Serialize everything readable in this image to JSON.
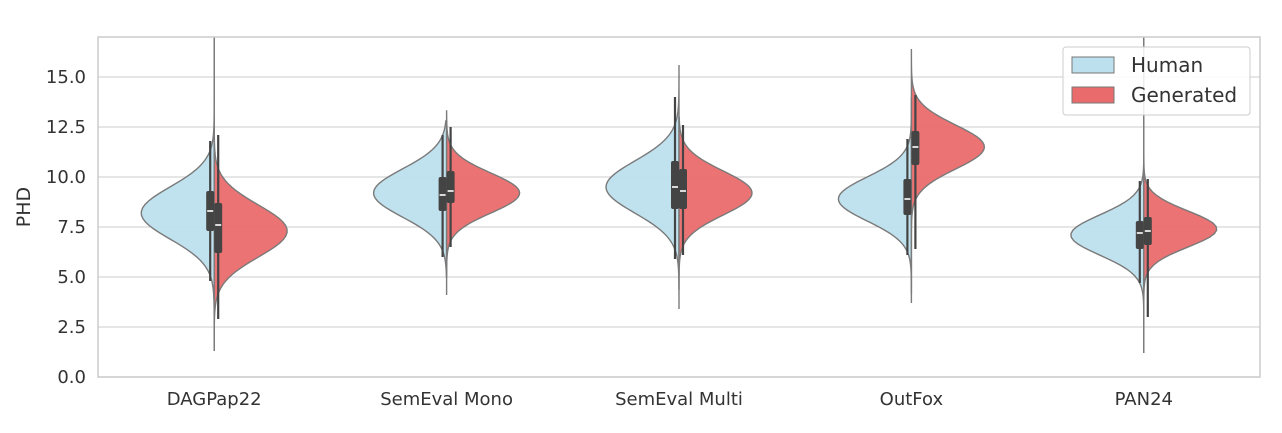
{
  "chart_data": {
    "type": "violin",
    "title": "",
    "xlabel": "",
    "ylabel": "PHD",
    "ylim": [
      0,
      17
    ],
    "yticks": [
      "0.0",
      "2.5",
      "5.0",
      "7.5",
      "10.0",
      "12.5",
      "15.0"
    ],
    "categories": [
      "DAGPap22",
      "SemEval Mono",
      "SemEval Multi",
      "OutFox",
      "PAN24"
    ],
    "grid": true,
    "legend": {
      "placement": "top-right"
    },
    "series": [
      {
        "name": "Human",
        "color": "#bde0ee",
        "distributions": [
          {
            "min": 4.8,
            "q1": 7.3,
            "median": 8.3,
            "q3": 9.3,
            "max": 11.8,
            "extent": [
              1.3,
              17.0
            ],
            "peak": 8.2,
            "sd": 1.3
          },
          {
            "min": 6.0,
            "q1": 8.3,
            "median": 9.1,
            "q3": 10.0,
            "max": 12.1,
            "extent": [
              5.0,
              12.8
            ],
            "peak": 9.2,
            "sd": 1.2
          },
          {
            "min": 5.9,
            "q1": 8.4,
            "median": 9.5,
            "q3": 10.8,
            "max": 14.0,
            "extent": [
              3.4,
              15.6
            ],
            "peak": 9.5,
            "sd": 1.3
          },
          {
            "min": 6.1,
            "q1": 8.1,
            "median": 8.9,
            "q3": 9.9,
            "max": 11.9,
            "extent": [
              4.2,
              14.0
            ],
            "peak": 8.9,
            "sd": 1.1
          },
          {
            "min": 4.7,
            "q1": 6.4,
            "median": 7.2,
            "q3": 7.8,
            "max": 9.8,
            "extent": [
              1.2,
              17.0
            ],
            "peak": 7.1,
            "sd": 1.0
          }
        ]
      },
      {
        "name": "Generated",
        "color": "#ea6b6b",
        "distributions": [
          {
            "min": 2.9,
            "q1": 6.2,
            "median": 7.6,
            "q3": 8.7,
            "max": 12.1,
            "extent": [
              1.3,
              17.0
            ],
            "peak": 7.3,
            "sd": 1.3
          },
          {
            "min": 6.5,
            "q1": 8.7,
            "median": 9.3,
            "q3": 10.3,
            "max": 12.5,
            "extent": [
              4.1,
              13.3
            ],
            "peak": 9.2,
            "sd": 1.0
          },
          {
            "min": 6.1,
            "q1": 8.4,
            "median": 9.3,
            "q3": 10.4,
            "max": 12.6,
            "extent": [
              4.4,
              13.0
            ],
            "peak": 9.2,
            "sd": 1.1
          },
          {
            "min": 6.4,
            "q1": 10.6,
            "median": 11.5,
            "q3": 12.3,
            "max": 14.1,
            "extent": [
              3.7,
              16.4
            ],
            "peak": 11.5,
            "sd": 1.1
          },
          {
            "min": 3.0,
            "q1": 6.6,
            "median": 7.3,
            "q3": 8.0,
            "max": 9.9,
            "extent": [
              1.2,
              17.0
            ],
            "peak": 7.4,
            "sd": 0.9
          }
        ]
      }
    ]
  }
}
